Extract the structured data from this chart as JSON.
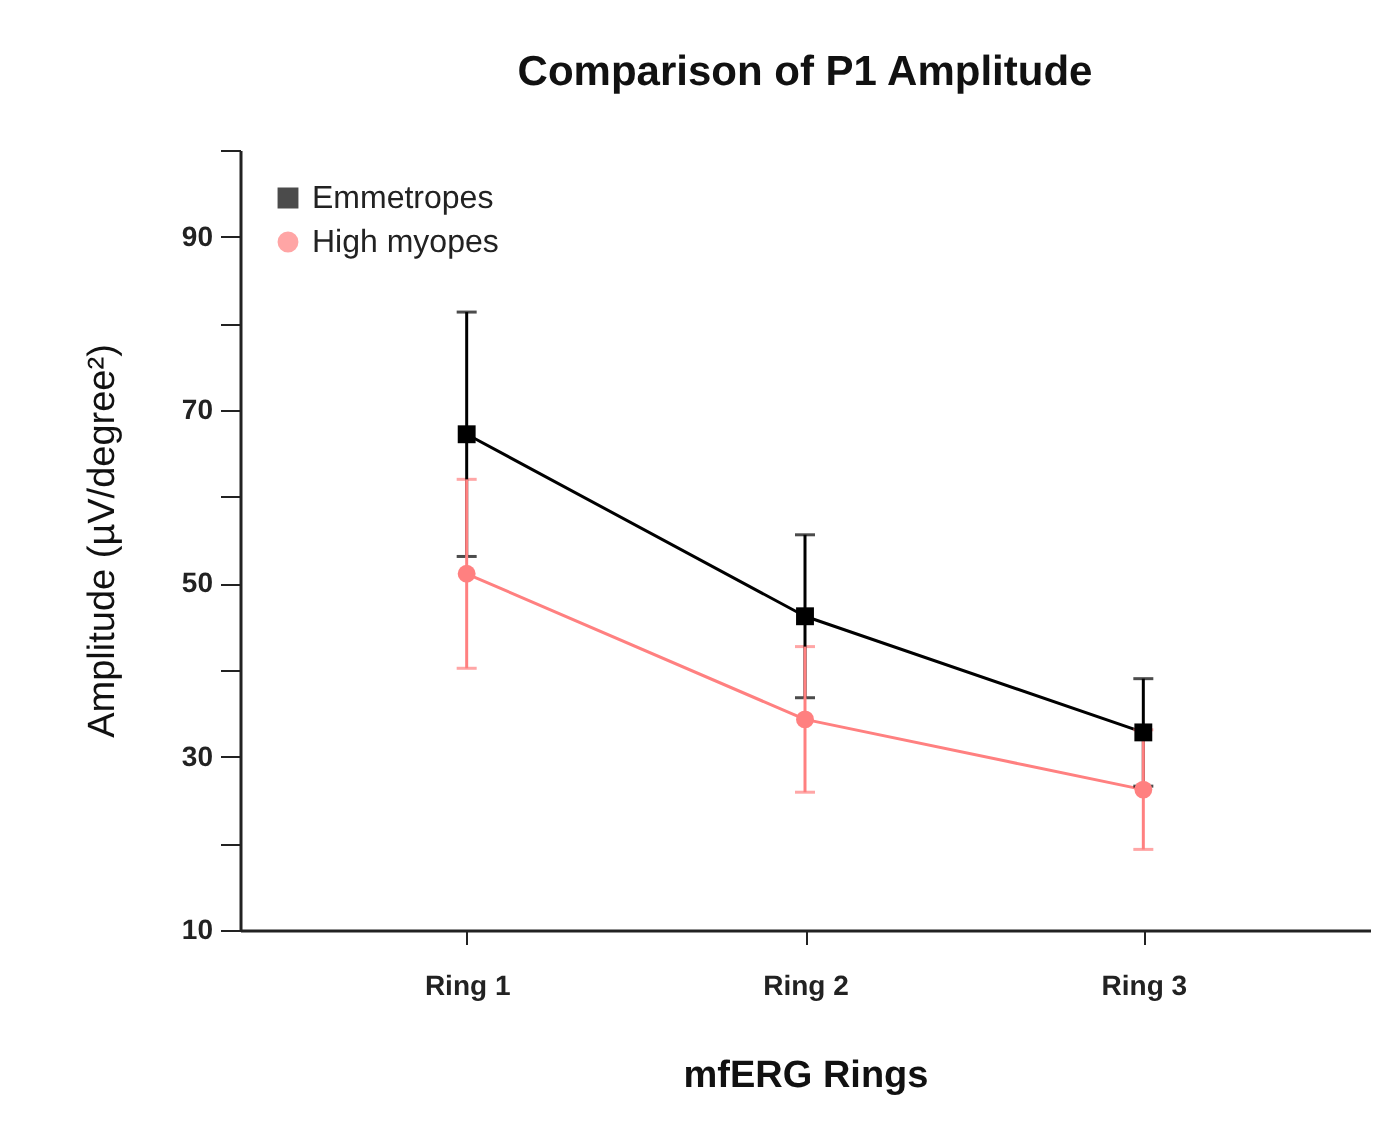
{
  "chart_data": {
    "type": "line",
    "title": "Comparison of P1 Amplitude",
    "xlabel": "mfERG Rings",
    "ylabel": "Amplitude (µV/degree²)",
    "categories": [
      "Ring 1",
      "Ring 2",
      "Ring 3"
    ],
    "series": [
      {
        "name": "Emmetropes",
        "color": "#000000",
        "marker": "square",
        "values": [
          67.2,
          46.2,
          32.8
        ],
        "errors": [
          14.1,
          9.4,
          6.2
        ]
      },
      {
        "name": "High myopes",
        "color": "#ff8080",
        "marker": "circle",
        "values": [
          51.1,
          34.3,
          26.2
        ],
        "errors": [
          10.9,
          8.4,
          6.9
        ]
      }
    ],
    "ylim": [
      10,
      100
    ],
    "yticks": [
      10,
      {
        "value": 20,
        "label": null
      },
      30,
      {
        "value": 40,
        "label": null
      },
      50,
      {
        "value": 60,
        "label": null
      },
      70,
      {
        "value": 80,
        "label": null
      },
      90,
      {
        "value": 100,
        "label": null
      }
    ],
    "grid": false,
    "legend": "top left",
    "line_style": "solid"
  }
}
